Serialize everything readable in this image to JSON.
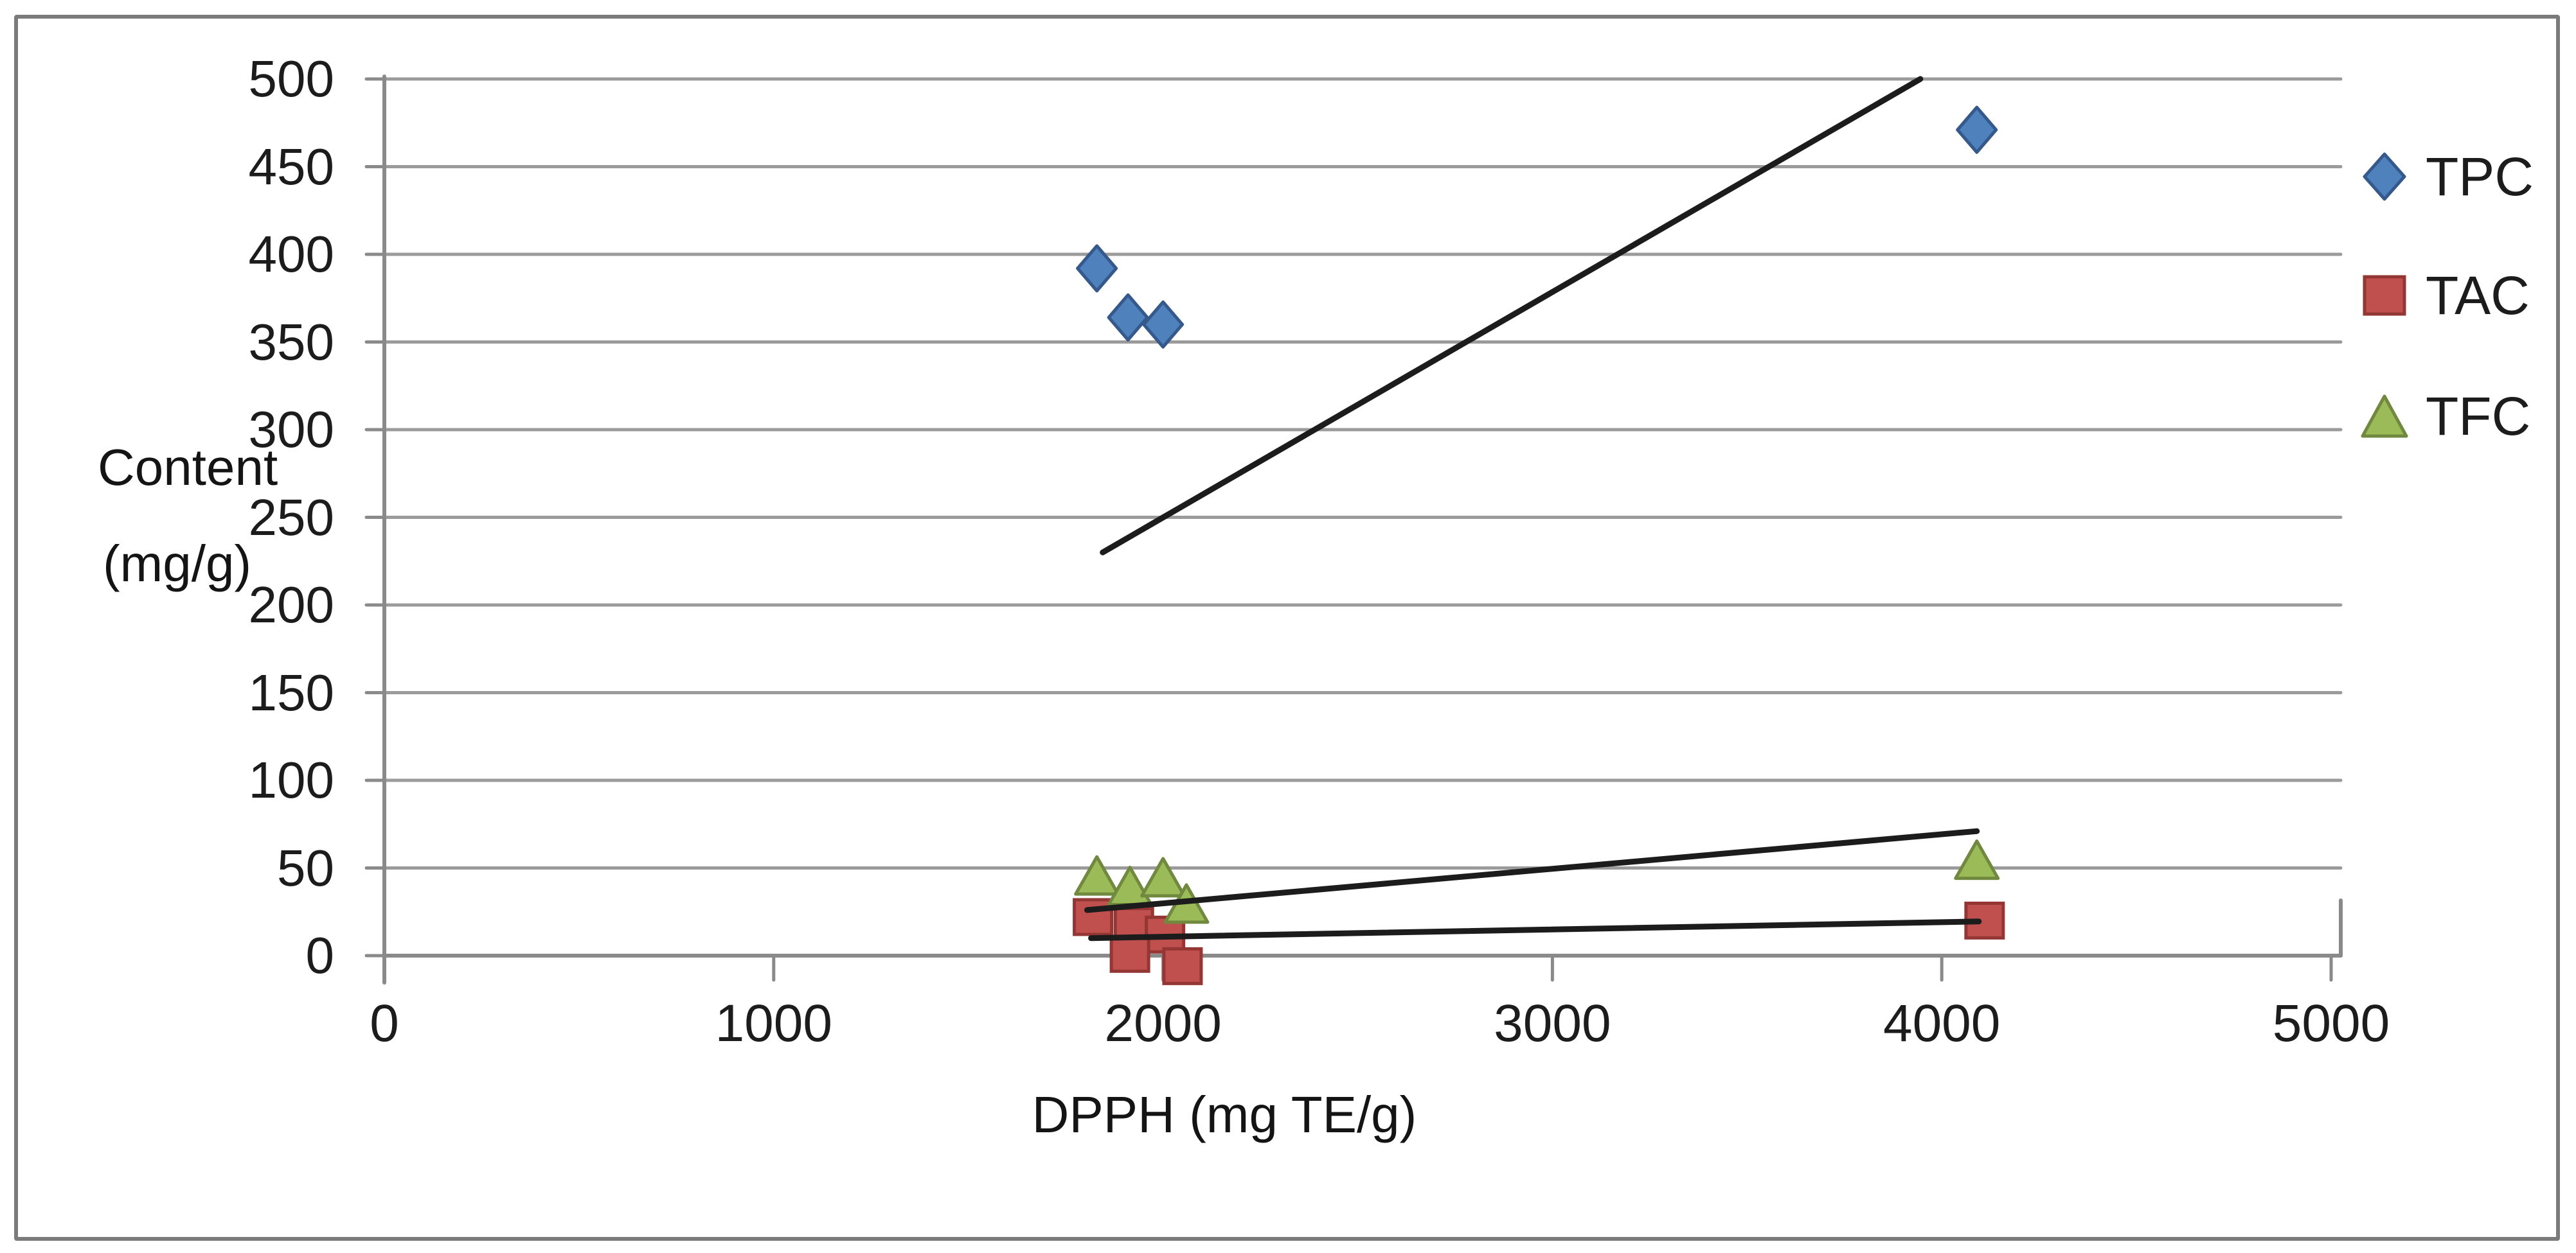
{
  "figure": {
    "y_axis_title_line1": "Content",
    "y_axis_title_line2": "(mg/g)",
    "x_axis_title": "DPPH (mg TE/g)"
  },
  "legend": [
    {
      "label": "TPC",
      "series": "TPC",
      "marker": "diamond-icon"
    },
    {
      "label": "TAC",
      "series": "TAC",
      "marker": "square-icon"
    },
    {
      "label": "TFC",
      "series": "TFC",
      "marker": "triangle-icon"
    }
  ],
  "chart_data": {
    "type": "scatter",
    "title": "",
    "xlabel": "DPPH (mg TE/g)",
    "ylabel": "Content (mg/g)",
    "xlim": [
      0,
      5200
    ],
    "ylim": [
      0,
      500
    ],
    "x_ticks": [
      0,
      1000,
      2000,
      3000,
      4000,
      5000
    ],
    "y_ticks": [
      0,
      50,
      100,
      150,
      200,
      250,
      300,
      350,
      400,
      450,
      500
    ],
    "grid": true,
    "legend_position": "right",
    "series": [
      {
        "name": "TPC",
        "marker": "diamond",
        "fill": "#4F81BD",
        "stroke": "#36598C",
        "points": [
          [
            1830,
            392
          ],
          [
            1910,
            364
          ],
          [
            2000,
            360
          ],
          [
            4090,
            471
          ]
        ],
        "trendline": [
          [
            1845,
            230
          ],
          [
            3945,
            500
          ]
        ]
      },
      {
        "name": "TAC",
        "marker": "square",
        "fill": "#C0504D",
        "stroke": "#943634",
        "points": [
          [
            1820,
            22
          ],
          [
            1925,
            17
          ],
          [
            2005,
            12
          ],
          [
            1915,
            1
          ],
          [
            2050,
            -6
          ],
          [
            4110,
            20
          ]
        ],
        "trendline": [
          [
            1815,
            10
          ],
          [
            4095,
            19.5
          ]
        ]
      },
      {
        "name": "TFC",
        "marker": "triangle",
        "fill": "#9BBB59",
        "stroke": "#71893F",
        "points": [
          [
            1830,
            45
          ],
          [
            1915,
            39
          ],
          [
            2000,
            44
          ],
          [
            2060,
            29
          ],
          [
            4090,
            54
          ]
        ],
        "trendline": [
          [
            1805,
            26
          ],
          [
            4090,
            71
          ]
        ]
      }
    ],
    "colors": {
      "grid": "#9b9b9b",
      "axis": "#8a8a8a",
      "trendline": "#1c1c1c",
      "text": "#1c1c1c"
    }
  }
}
